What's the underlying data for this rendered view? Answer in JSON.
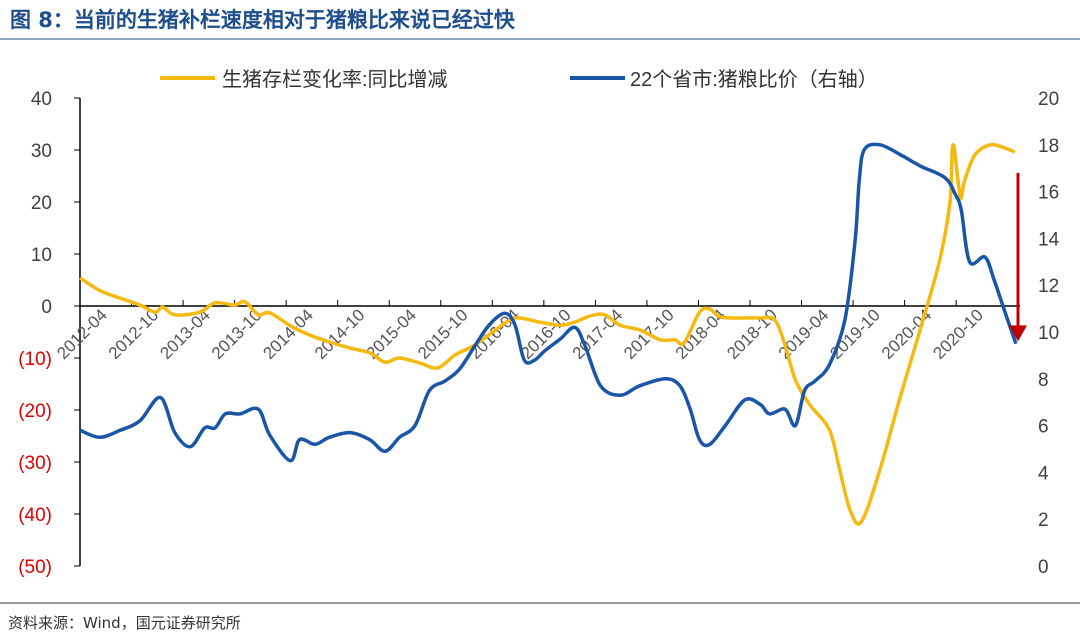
{
  "title": "图 8：当前的生猪补栏速度相对于猪粮比来说已经过快",
  "source": "资料来源：Wind，国元证券研究所",
  "chart_data": {
    "type": "line",
    "title": "图 8：当前的生猪补栏速度相对于猪粮比来说已经过快",
    "xlabel": "",
    "ylabel_left": "",
    "ylabel_right": "",
    "xlim": [
      2012.25,
      2021.35
    ],
    "ylim_left": [
      -50,
      40
    ],
    "ylim_right": [
      0,
      20
    ],
    "x_tick_labels": [
      "2012-04",
      "2012-10",
      "2013-04",
      "2013-10",
      "2014-04",
      "2014-10",
      "2015-04",
      "2015-10",
      "2016-04",
      "2016-10",
      "2017-04",
      "2017-10",
      "2018-04",
      "2018-10",
      "2019-04",
      "2019-10",
      "2020-04",
      "2020-10"
    ],
    "y_left_ticks": [
      {
        "v": 40,
        "label": "40"
      },
      {
        "v": 30,
        "label": "30"
      },
      {
        "v": 20,
        "label": "20"
      },
      {
        "v": 10,
        "label": "10"
      },
      {
        "v": 0,
        "label": "0"
      },
      {
        "v": -10,
        "label": "(10)"
      },
      {
        "v": -20,
        "label": "(20)"
      },
      {
        "v": -30,
        "label": "(30)"
      },
      {
        "v": -40,
        "label": "(40)"
      },
      {
        "v": -50,
        "label": "(50)"
      }
    ],
    "y_right_ticks": [
      20,
      18,
      16,
      14,
      12,
      10,
      8,
      6,
      4,
      2,
      0
    ],
    "legend_position": "top",
    "series": [
      {
        "name": "生猪存栏变化率:同比增减",
        "axis": "left",
        "color": "#f5b90f",
        "x": [
          2012.25,
          2012.44,
          2012.64,
          2012.83,
          2012.98,
          2013.05,
          2013.17,
          2013.41,
          2013.56,
          2013.75,
          2013.85,
          2013.98,
          2014.09,
          2014.29,
          2014.48,
          2014.67,
          2014.87,
          2015.06,
          2015.21,
          2015.35,
          2015.55,
          2015.72,
          2015.89,
          2016.08,
          2016.28,
          2016.42,
          2016.52,
          2016.71,
          2016.91,
          2017.05,
          2017.2,
          2017.34,
          2017.49,
          2017.68,
          2017.88,
          2018.02,
          2018.11,
          2018.26,
          2018.36,
          2018.46,
          2018.65,
          2018.85,
          2018.99,
          2019.09,
          2019.19,
          2019.33,
          2019.52,
          2019.62,
          2019.72,
          2019.83,
          2020.01,
          2020.2,
          2020.4,
          2020.59,
          2020.69,
          2020.72,
          2020.79,
          2020.83,
          2020.93,
          2021.08,
          2021.22,
          2021.32
        ],
        "y": [
          5.4,
          3,
          1.5,
          0.2,
          -1.2,
          -0.2,
          -1.7,
          -1.2,
          0.6,
          0.2,
          0.8,
          -1.7,
          -1.3,
          -3.8,
          -5.6,
          -6.9,
          -8.1,
          -9,
          -10.8,
          -10,
          -11,
          -11.9,
          -9.4,
          -7.5,
          -4.6,
          -2.7,
          -2.3,
          -3.1,
          -3.7,
          -3.1,
          -1.9,
          -1.7,
          -3.7,
          -4.6,
          -6.5,
          -6.5,
          -7.1,
          -1.2,
          -0.6,
          -2.1,
          -2.3,
          -2.3,
          -2.7,
          -7.5,
          -14.2,
          -19,
          -23.8,
          -31.5,
          -39.2,
          -41.5,
          -31.5,
          -18,
          -4.6,
          8.8,
          20,
          31,
          21,
          24,
          29,
          31,
          30.4,
          29.6
        ]
      },
      {
        "name": "22个省市:猪粮比价（右轴）",
        "axis": "right",
        "color": "#1a55a8",
        "x": [
          2012.25,
          2012.44,
          2012.64,
          2012.83,
          2013.03,
          2013.17,
          2013.32,
          2013.46,
          2013.56,
          2013.66,
          2013.8,
          2013.98,
          2014.09,
          2014.29,
          2014.38,
          2014.53,
          2014.67,
          2014.87,
          2015.06,
          2015.21,
          2015.35,
          2015.5,
          2015.64,
          2015.79,
          2015.93,
          2016.08,
          2016.22,
          2016.37,
          2016.47,
          2016.56,
          2016.66,
          2016.76,
          2016.91,
          2017.05,
          2017.15,
          2017.3,
          2017.49,
          2017.68,
          2017.93,
          2018.07,
          2018.17,
          2018.26,
          2018.36,
          2018.51,
          2018.7,
          2018.85,
          2018.94,
          2019.09,
          2019.19,
          2019.28,
          2019.38,
          2019.52,
          2019.67,
          2019.77,
          2019.81,
          2019.86,
          2020.01,
          2020.2,
          2020.4,
          2020.64,
          2020.74,
          2020.8,
          2020.88,
          2021.03,
          2021.12,
          2021.22,
          2021.33
        ],
        "y": [
          5.8,
          5.5,
          5.8,
          6.2,
          7.2,
          5.7,
          5.1,
          5.9,
          5.9,
          6.5,
          6.5,
          6.7,
          5.6,
          4.5,
          5.4,
          5.2,
          5.5,
          5.7,
          5.4,
          4.9,
          5.5,
          6,
          7.5,
          7.9,
          8.4,
          9.4,
          10.3,
          10.8,
          10.3,
          8.8,
          8.8,
          9.2,
          9.7,
          10.2,
          9.4,
          7.7,
          7.3,
          7.7,
          8,
          7.7,
          6.7,
          5.4,
          5.2,
          6,
          7.1,
          6.9,
          6.5,
          6.7,
          6,
          7.5,
          7.9,
          8.6,
          10.5,
          13.9,
          16.5,
          17.8,
          18,
          17.6,
          17.1,
          16.6,
          15.9,
          15.2,
          13,
          13.2,
          12.2,
          10.9,
          9.5
        ]
      }
    ],
    "annotations": [
      {
        "type": "arrow",
        "color": "#c00000",
        "axis": "right",
        "x": 2021.35,
        "from": 16.8,
        "to": 9.6
      }
    ]
  }
}
